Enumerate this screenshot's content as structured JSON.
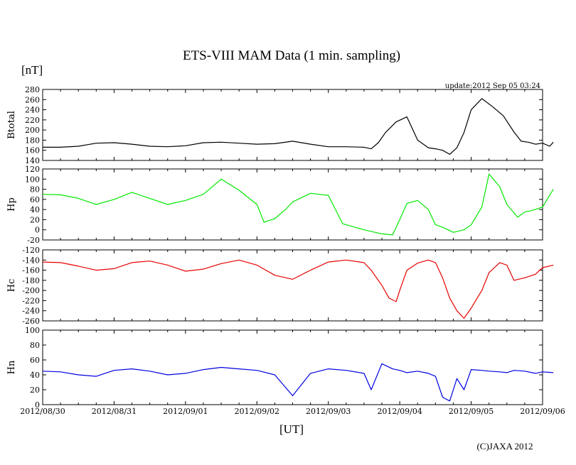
{
  "chart_data": {
    "type": "line",
    "title": "ETS-VIII MAM Data (1 min. sampling)",
    "unit_label": "[nT]",
    "xlabel": "[UT]",
    "update_text": "update:2012 Sep 05 03:24",
    "copyright": "(C)JAXA 2012",
    "x_tick_labels": [
      "2012/08/30",
      "2012/08/31",
      "2012/09/01",
      "2012/09/02",
      "2012/09/03",
      "2012/09/04",
      "2012/09/05",
      "2012/09/06"
    ],
    "xlim_days": [
      0,
      7
    ],
    "x_unit": "days since 2012/08/30 00:00 UT",
    "panels": [
      {
        "name": "Btotal",
        "ylabel": "Btotal",
        "color": "#000000",
        "ylim": [
          140,
          280
        ],
        "yticks": [
          140,
          160,
          180,
          200,
          220,
          240,
          260,
          280
        ],
        "x": [
          0,
          0.25,
          0.5,
          0.75,
          1.0,
          1.25,
          1.5,
          1.75,
          2.0,
          2.25,
          2.5,
          2.75,
          3.0,
          3.25,
          3.5,
          3.75,
          4.0,
          4.25,
          4.5,
          4.6,
          4.7,
          4.8,
          4.95,
          5.1,
          5.25,
          5.4,
          5.5,
          5.6,
          5.7,
          5.8,
          5.9,
          6.0,
          6.15,
          6.3,
          6.45,
          6.6,
          6.7,
          6.8,
          6.9,
          7.0,
          7.1,
          7.15
        ],
        "values": [
          166,
          166,
          168,
          174,
          175,
          172,
          168,
          167,
          169,
          175,
          176,
          174,
          172,
          173,
          178,
          172,
          167,
          167,
          166,
          163,
          175,
          195,
          216,
          226,
          180,
          165,
          163,
          160,
          152,
          165,
          195,
          240,
          262,
          246,
          228,
          196,
          178,
          176,
          172,
          174,
          168,
          176
        ]
      },
      {
        "name": "Hp",
        "ylabel": "Hp",
        "color": "#00e800",
        "ylim": [
          -20,
          120
        ],
        "yticks": [
          -20,
          0,
          20,
          40,
          60,
          80,
          100,
          120
        ],
        "x": [
          0,
          0.25,
          0.5,
          0.75,
          1.0,
          1.25,
          1.5,
          1.75,
          2.0,
          2.25,
          2.5,
          2.75,
          3.0,
          3.1,
          3.25,
          3.4,
          3.5,
          3.75,
          4.0,
          4.2,
          4.25,
          4.5,
          4.75,
          4.9,
          5.0,
          5.1,
          5.25,
          5.4,
          5.5,
          5.6,
          5.75,
          5.9,
          6.0,
          6.15,
          6.25,
          6.4,
          6.5,
          6.65,
          6.75,
          6.85,
          7.0,
          7.15
        ],
        "values": [
          70,
          69,
          62,
          50,
          60,
          74,
          62,
          50,
          58,
          70,
          100,
          78,
          50,
          15,
          22,
          40,
          55,
          72,
          68,
          12,
          10,
          0,
          -8,
          -10,
          20,
          52,
          58,
          40,
          10,
          5,
          -5,
          0,
          10,
          45,
          110,
          85,
          50,
          25,
          35,
          38,
          45,
          80
        ]
      },
      {
        "name": "Hc",
        "ylabel": "Hc",
        "color": "#e80000",
        "ylim": [
          -260,
          -120
        ],
        "yticks": [
          -260,
          -240,
          -220,
          -200,
          -180,
          -160,
          -140,
          -120
        ],
        "x": [
          0,
          0.25,
          0.5,
          0.75,
          1.0,
          1.25,
          1.5,
          1.75,
          2.0,
          2.25,
          2.5,
          2.75,
          3.0,
          3.25,
          3.5,
          3.75,
          4.0,
          4.25,
          4.5,
          4.6,
          4.75,
          4.85,
          4.95,
          5.0,
          5.1,
          5.25,
          5.4,
          5.5,
          5.6,
          5.7,
          5.8,
          5.9,
          6.0,
          6.15,
          6.25,
          6.4,
          6.5,
          6.6,
          6.75,
          6.9,
          7.0,
          7.15
        ],
        "values": [
          -144,
          -145,
          -152,
          -160,
          -157,
          -145,
          -142,
          -150,
          -162,
          -158,
          -147,
          -140,
          -150,
          -170,
          -178,
          -160,
          -144,
          -140,
          -145,
          -160,
          -190,
          -215,
          -222,
          -200,
          -160,
          -146,
          -140,
          -145,
          -175,
          -215,
          -240,
          -255,
          -235,
          -200,
          -165,
          -145,
          -150,
          -180,
          -175,
          -168,
          -155,
          -150
        ]
      },
      {
        "name": "Hn",
        "ylabel": "Hn",
        "color": "#0000e0",
        "ylim": [
          0,
          100
        ],
        "yticks": [
          0,
          20,
          40,
          60,
          80,
          100
        ],
        "x": [
          0,
          0.25,
          0.5,
          0.75,
          1.0,
          1.25,
          1.5,
          1.75,
          2.0,
          2.25,
          2.5,
          2.75,
          3.0,
          3.25,
          3.5,
          3.75,
          4.0,
          4.25,
          4.5,
          4.6,
          4.75,
          4.9,
          5.0,
          5.1,
          5.25,
          5.4,
          5.5,
          5.6,
          5.7,
          5.8,
          5.9,
          6.0,
          6.15,
          6.25,
          6.4,
          6.5,
          6.6,
          6.75,
          6.9,
          7.0,
          7.15
        ],
        "values": [
          45,
          44,
          40,
          38,
          46,
          48,
          45,
          40,
          42,
          47,
          50,
          48,
          46,
          40,
          12,
          42,
          48,
          46,
          42,
          20,
          55,
          48,
          46,
          43,
          45,
          42,
          38,
          10,
          5,
          35,
          20,
          47,
          46,
          45,
          44,
          43,
          46,
          45,
          42,
          44,
          43
        ]
      }
    ]
  }
}
